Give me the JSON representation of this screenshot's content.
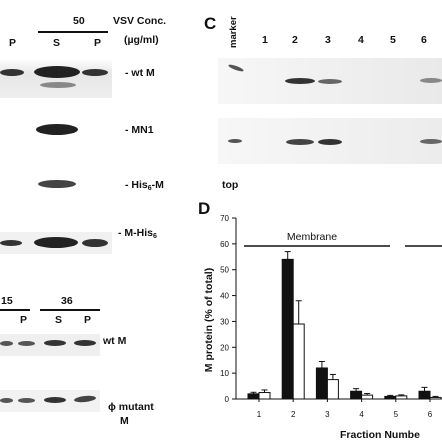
{
  "panelB": {
    "conc_value": "50",
    "conc_title_line1": "VSV Conc.",
    "conc_title_line2": "(µg/ml)",
    "left_lane_label": "P",
    "lane_S": "S",
    "lane_P": "P",
    "row_labels": {
      "wtM": "- wt M",
      "MN1": "- MN1",
      "his_prefix": "- His",
      "his_sub": "6",
      "his_suffix": "-M",
      "mhis_prefix": "- M-His",
      "mhis_sub": "6"
    }
  },
  "panelLower": {
    "conc_a": "15",
    "conc_b": "36",
    "lanes": [
      "P",
      "S",
      "P"
    ],
    "row1_label": "wt M",
    "row2_label_line1": "ϕ mutant",
    "row2_label_line2": "M"
  },
  "panelC": {
    "letter": "C",
    "marker_label": "marker",
    "lanes": [
      "1",
      "2",
      "3",
      "4",
      "5",
      "6"
    ],
    "top_label": "top"
  },
  "panelD": {
    "letter": "D",
    "membrane_label": "Membrane",
    "ylabel": "M protein (% of total)",
    "xlabel": "Fraction Numbe"
  },
  "chart_data": {
    "type": "bar",
    "title": "",
    "xlabel": "Fraction Numbe",
    "ylabel": "M protein (% of total)",
    "ylim": [
      0,
      70
    ],
    "yticks": [
      0,
      10,
      20,
      30,
      40,
      50,
      60,
      70
    ],
    "categories": [
      "1",
      "2",
      "3",
      "4",
      "5",
      "6"
    ],
    "series": [
      {
        "fill": "#111111",
        "values": [
          2,
          54,
          12,
          3,
          1,
          3
        ],
        "errors": [
          0.6,
          3,
          2.5,
          1,
          0.4,
          1.5
        ]
      },
      {
        "fill": "#ffffff",
        "values": [
          2.5,
          29,
          7.5,
          1.5,
          1.2,
          0.6
        ],
        "errors": [
          1,
          9,
          2,
          0.6,
          0.4,
          0.4
        ]
      }
    ],
    "grid": false,
    "legend": "none"
  }
}
